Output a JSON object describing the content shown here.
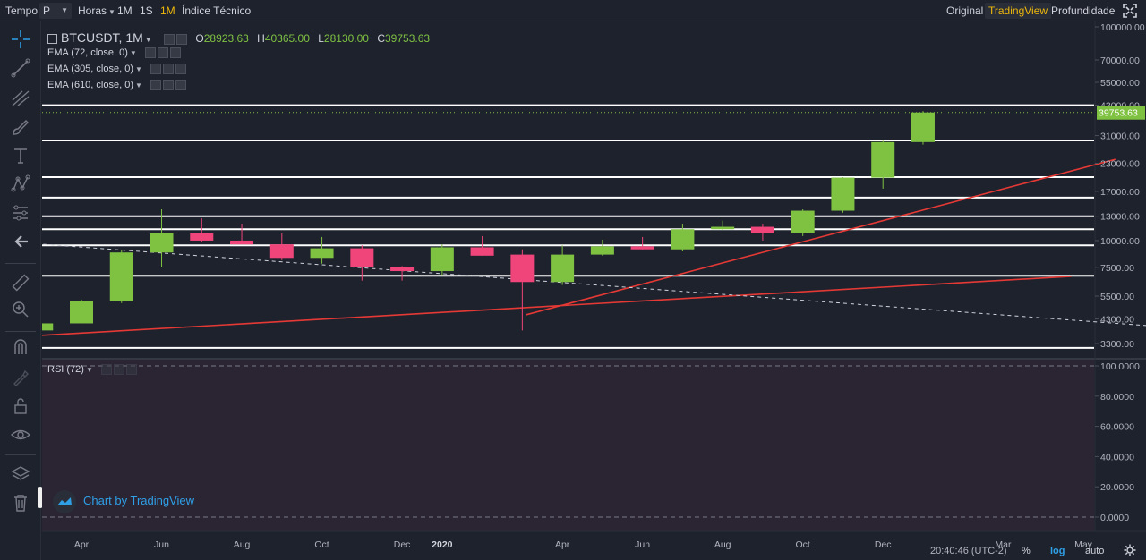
{
  "topbar": {
    "tempo_label": "Tempo",
    "tempo_value": "P",
    "horas_label": "Horas",
    "interval_1m_small": "1M",
    "interval_1s": "1S",
    "interval_1m": "1M",
    "indicators_label": "Índice Técnico",
    "original_label": "Original",
    "tradingview_label": "TradingView",
    "depth_label": "Profundidade"
  },
  "legend": {
    "symbol": "BTCUSDT, 1M",
    "o_label": "O",
    "o_value": "28923.63",
    "h_label": "H",
    "h_value": "40365.00",
    "l_label": "L",
    "l_value": "28130.00",
    "c_label": "C",
    "c_value": "39753.63",
    "ema1": "EMA (72, close, 0)",
    "ema2": "EMA (305, close, 0)",
    "ema3": "EMA (610, close, 0)",
    "rsi": "RSI (72)"
  },
  "credit": "Chart by TradingView",
  "bottom": {
    "time": "20:40:46 (UTC-2)",
    "percent": "%",
    "log": "log",
    "auto": "auto"
  },
  "colors": {
    "bull": "#7fc242",
    "bear": "#f0457a",
    "trend": "#e53935",
    "accent": "#f0b90b"
  },
  "chart_data": {
    "type": "candlestick",
    "yscale": "log",
    "last_price_label": "39753.63",
    "price_ticks": [
      "100000.00",
      "70000.00",
      "55000.00",
      "43000.00",
      "31000.00",
      "23000.00",
      "17000.00",
      "13000.00",
      "10000.00",
      "7500.00",
      "5500.00",
      "4300.00",
      "3300.00"
    ],
    "price_tick_values": [
      100000,
      70000,
      55000,
      43000,
      31000,
      23000,
      17000,
      13000,
      10000,
      7500,
      5500,
      4300,
      3300
    ],
    "rsi_ticks": [
      "100.0000",
      "80.0000",
      "60.0000",
      "40.0000",
      "20.0000",
      "0.0000"
    ],
    "rsi_tick_values": [
      100,
      80,
      60,
      40,
      20,
      0
    ],
    "time_labels": [
      "Apr",
      "Jun",
      "Aug",
      "Oct",
      "Dec",
      "2020",
      "Apr",
      "Jun",
      "Aug",
      "Oct",
      "Dec",
      "Mar",
      "May"
    ],
    "time_label_months": [
      3,
      5,
      7,
      9,
      11,
      12,
      15,
      17,
      19,
      21,
      23,
      26,
      28
    ],
    "candles": [
      {
        "m": 2,
        "o": 3800,
        "h": 4100,
        "l": 3700,
        "c": 4100
      },
      {
        "m": 3,
        "o": 4100,
        "h": 5300,
        "l": 4100,
        "c": 5200
      },
      {
        "m": 4,
        "o": 5200,
        "h": 9000,
        "l": 5100,
        "c": 8800
      },
      {
        "m": 5,
        "o": 8800,
        "h": 14000,
        "l": 7500,
        "c": 10800
      },
      {
        "m": 6,
        "o": 10800,
        "h": 12700,
        "l": 9800,
        "c": 10000
      },
      {
        "m": 7,
        "o": 10000,
        "h": 12000,
        "l": 9700,
        "c": 9600
      },
      {
        "m": 8,
        "o": 9600,
        "h": 10800,
        "l": 8100,
        "c": 8300
      },
      {
        "m": 9,
        "o": 8300,
        "h": 10400,
        "l": 7800,
        "c": 9200
      },
      {
        "m": 10,
        "o": 9200,
        "h": 9500,
        "l": 6500,
        "c": 7500
      },
      {
        "m": 11,
        "o": 7500,
        "h": 7600,
        "l": 6500,
        "c": 7200
      },
      {
        "m": 12,
        "o": 7200,
        "h": 9600,
        "l": 6900,
        "c": 9300
      },
      {
        "m": 13,
        "o": 9300,
        "h": 10500,
        "l": 8500,
        "c": 8500
      },
      {
        "m": 14,
        "o": 8600,
        "h": 9100,
        "l": 3800,
        "c": 6400
      },
      {
        "m": 15,
        "o": 6400,
        "h": 9500,
        "l": 6200,
        "c": 8600
      },
      {
        "m": 16,
        "o": 8600,
        "h": 10100,
        "l": 8500,
        "c": 9400
      },
      {
        "m": 17,
        "o": 9400,
        "h": 10400,
        "l": 9100,
        "c": 9100
      },
      {
        "m": 18,
        "o": 9100,
        "h": 12000,
        "l": 8900,
        "c": 11300
      },
      {
        "m": 19,
        "o": 11300,
        "h": 12400,
        "l": 11200,
        "c": 11600
      },
      {
        "m": 20,
        "o": 11600,
        "h": 12000,
        "l": 10000,
        "c": 10800
      },
      {
        "m": 21,
        "o": 10800,
        "h": 14000,
        "l": 10500,
        "c": 13800
      },
      {
        "m": 22,
        "o": 13800,
        "h": 19800,
        "l": 13500,
        "c": 19700
      },
      {
        "m": 23,
        "o": 19700,
        "h": 29300,
        "l": 17500,
        "c": 28900
      },
      {
        "m": 24,
        "o": 28900,
        "h": 40365,
        "l": 28130,
        "c": 39753.63
      }
    ],
    "horizontal_levels": [
      43000,
      29400,
      19800,
      15900,
      13000,
      11300,
      9500,
      6850,
      3150
    ],
    "trendlines": [
      {
        "x1": 0.8,
        "y1": 3500,
        "x2": 27.7,
        "y2": 6800,
        "color": "trend",
        "dashed": false
      },
      {
        "x1": 14.1,
        "y1": 4500,
        "x2": 28.8,
        "y2": 24000,
        "color": "trend",
        "dashed": false
      },
      {
        "x1": 0.8,
        "y1": 10000,
        "x2": 30,
        "y2": 3950,
        "color": "white",
        "dashed": true
      }
    ]
  }
}
